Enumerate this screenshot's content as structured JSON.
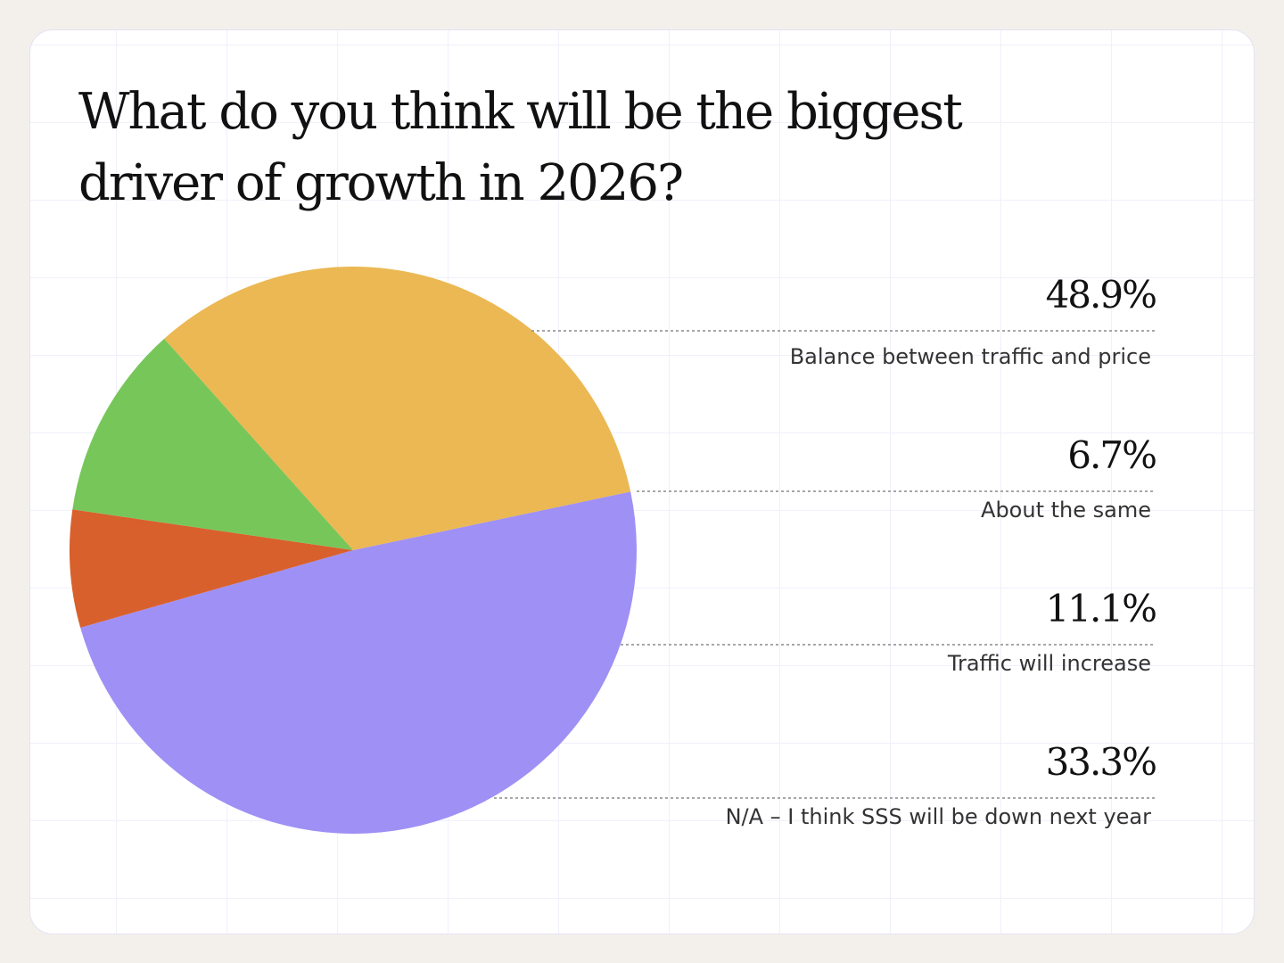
{
  "chart_data": {
    "type": "pie",
    "title": "What do you think will be the biggest driver of growth in 2026?",
    "slices": [
      {
        "label": "Balance between traffic and price",
        "value": 48.9,
        "display": "48.9%",
        "color": "#9f90f5"
      },
      {
        "label": "About the same",
        "value": 6.7,
        "display": "6.7%",
        "color": "#d8602c"
      },
      {
        "label": "Traffic will increase",
        "value": 11.1,
        "display": "11.1%",
        "color": "#77c65a"
      },
      {
        "label": "N/A – I think SSS will be down next year",
        "value": 33.3,
        "display": "33.3%",
        "color": "#ebb853"
      }
    ]
  },
  "colors": {
    "background": "#f3f0ec",
    "card": "#ffffff",
    "leader_line": "#8a8a8a"
  }
}
